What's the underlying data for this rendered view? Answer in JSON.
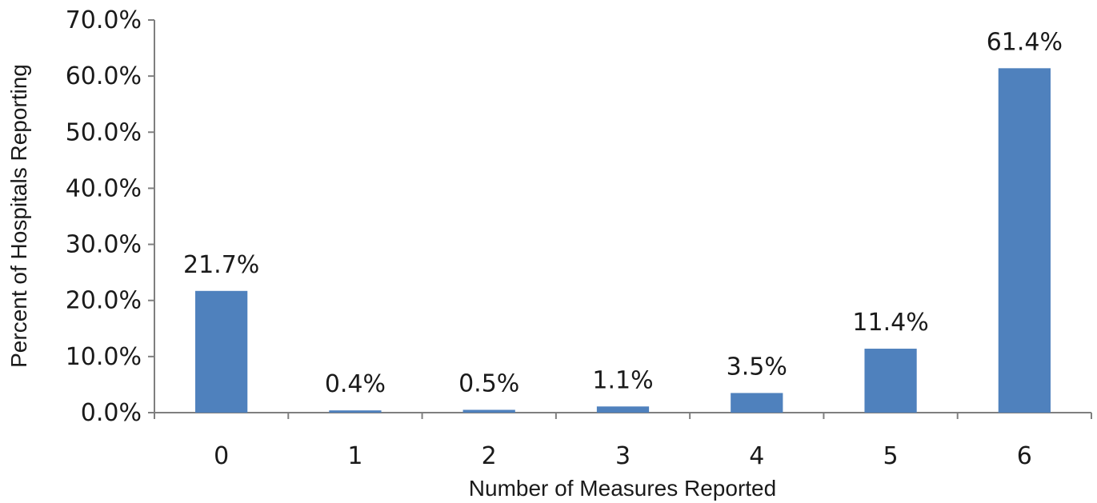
{
  "chart_data": {
    "type": "bar",
    "categories": [
      "0",
      "1",
      "2",
      "3",
      "4",
      "5",
      "6"
    ],
    "values": [
      21.7,
      0.4,
      0.5,
      1.1,
      3.5,
      11.4,
      61.4
    ],
    "data_labels": [
      "21.7%",
      "0.4%",
      "0.5%",
      "1.1%",
      "3.5%",
      "11.4%",
      "61.4%"
    ],
    "xlabel": "Number of Measures Reported",
    "ylabel": "Percent of Hospitals Reporting",
    "ylim": [
      0,
      70
    ],
    "yticks": [
      0,
      10,
      20,
      30,
      40,
      50,
      60,
      70
    ],
    "ytick_labels": [
      "0.0%",
      "10.0%",
      "20.0%",
      "30.0%",
      "40.0%",
      "50.0%",
      "60.0%",
      "70.0%"
    ],
    "grid": false,
    "legend": "none",
    "bar_color": "#4f81bd"
  }
}
